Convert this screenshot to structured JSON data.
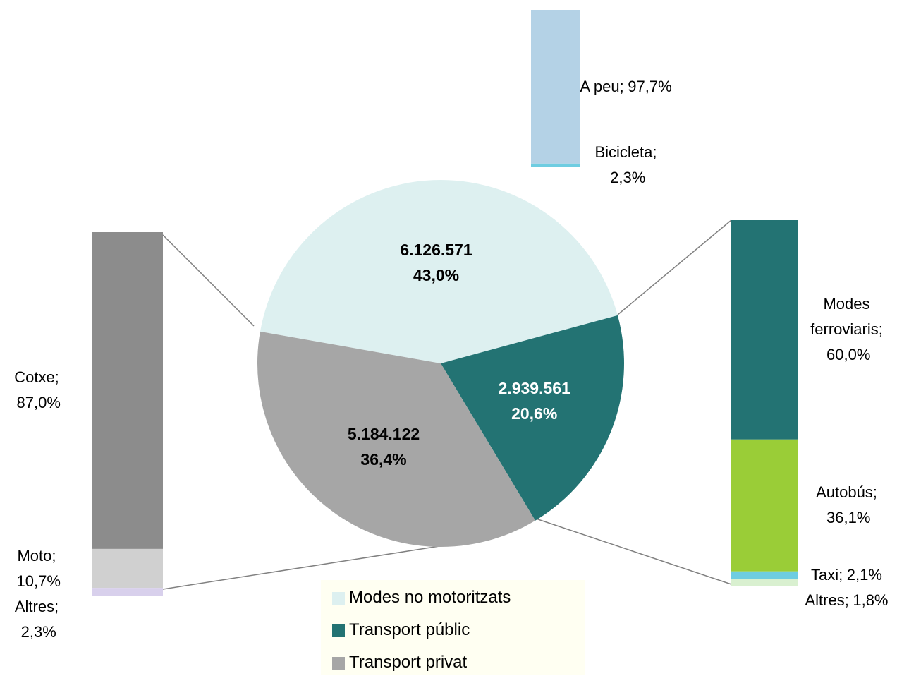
{
  "chart_data": [
    {
      "type": "pie",
      "categories": [
        "Modes no motoritzats",
        "Transport públic",
        "Transport privat"
      ],
      "values": [
        43.0,
        20.6,
        36.4
      ],
      "value_labels": [
        "43,0%",
        "20,6%",
        "36,4%"
      ],
      "counts": [
        6126571,
        2939561,
        5184122
      ],
      "count_labels": [
        "6.126.571",
        "2.939.561",
        "5.184.122"
      ],
      "colors": [
        "#ddf0f0",
        "#237373",
        "#a6a6a6"
      ],
      "legend": "bottom"
    },
    {
      "type": "stacked_bar",
      "categories": [
        "A peu;",
        "Bicicleta;"
      ],
      "values": [
        97.7,
        2.3
      ],
      "value_labels": [
        "97,7%",
        "2,3%"
      ],
      "colors": [
        "#b4d2e6",
        "#6ecde1"
      ]
    },
    {
      "type": "stacked_bar",
      "categories": [
        "Modes ferroviaris;",
        "Autobús;",
        "Taxi;",
        "Altres;"
      ],
      "values": [
        60.0,
        36.1,
        2.1,
        1.8
      ],
      "value_labels": [
        "60,0%",
        "36,1%",
        "2,1%",
        "1,8%"
      ],
      "colors": [
        "#237373",
        "#9acd37",
        "#6ecde1",
        "#d9f0d0"
      ]
    },
    {
      "type": "stacked_bar",
      "categories": [
        "Cotxe;",
        "Moto;",
        "Altres;"
      ],
      "values": [
        87.0,
        10.7,
        2.3
      ],
      "value_labels": [
        "87,0%",
        "10,7%",
        "2,3%"
      ],
      "colors": [
        "#8c8c8c",
        "#d0d0d0",
        "#d8d0ec"
      ]
    }
  ]
}
